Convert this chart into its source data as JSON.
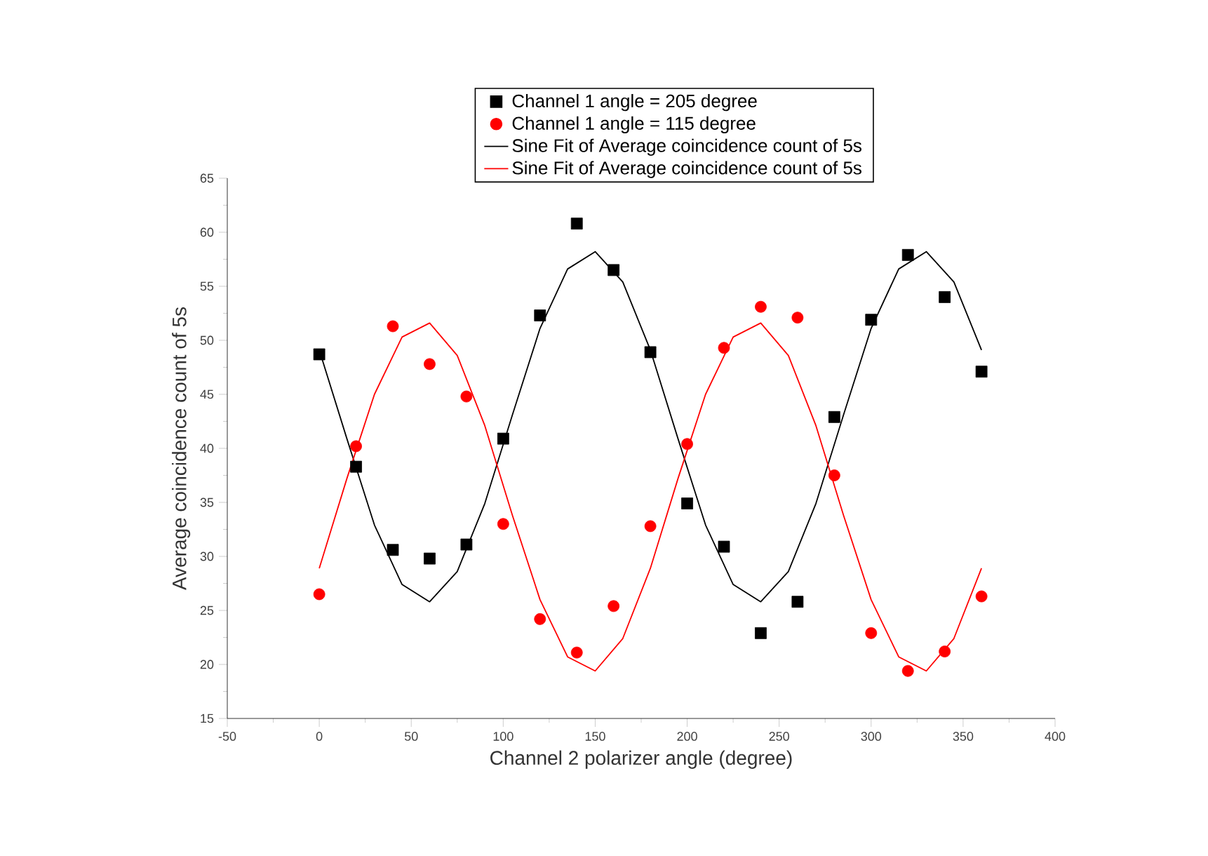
{
  "chart_data": {
    "type": "scatter",
    "xlabel": "Channel 2 polarizer angle (degree)",
    "ylabel": "Average coincidence count of 5s",
    "xlim": [
      -50,
      400
    ],
    "xticks": [
      -50,
      0,
      50,
      100,
      150,
      200,
      250,
      300,
      350,
      400
    ],
    "ylim": [
      15,
      65
    ],
    "yticks": [
      15,
      20,
      25,
      30,
      35,
      40,
      45,
      50,
      55,
      60,
      65
    ],
    "grid": false,
    "legend": "top",
    "series": [
      {
        "name": "Channel 1 angle = 205 degree",
        "marker": "square",
        "color": "#000000",
        "x": [
          0,
          20,
          40,
          60,
          80,
          100,
          120,
          140,
          160,
          180,
          200,
          220,
          240,
          260,
          280,
          300,
          320,
          340,
          360
        ],
        "values": [
          48.7,
          38.3,
          30.6,
          29.8,
          31.1,
          40.9,
          52.3,
          60.8,
          56.5,
          48.9,
          34.9,
          30.9,
          22.9,
          25.8,
          42.9,
          51.9,
          57.9,
          54.0,
          47.1
        ]
      },
      {
        "name": "Channel 1 angle = 115 degree",
        "marker": "circle",
        "color": "#ff0000",
        "x": [
          0,
          20,
          40,
          60,
          80,
          100,
          120,
          140,
          160,
          180,
          200,
          220,
          240,
          260,
          280,
          300,
          320,
          340,
          360
        ],
        "values": [
          26.5,
          40.2,
          51.3,
          47.8,
          44.8,
          33.0,
          24.2,
          21.1,
          25.4,
          32.8,
          40.4,
          49.3,
          53.1,
          52.1,
          37.5,
          22.9,
          19.4,
          21.2,
          26.3
        ]
      },
      {
        "name": "Sine Fit of Average coincidence count of 5s",
        "type": "line",
        "marker": "none",
        "line_style": "solid",
        "color": "#000000",
        "x": [
          0,
          15,
          30,
          45,
          60,
          75,
          90,
          105,
          120,
          135,
          150,
          165,
          180,
          195,
          210,
          225,
          240,
          255,
          270,
          285,
          300,
          315,
          330,
          345,
          360
        ],
        "values": [
          49.1,
          40.9,
          32.9,
          27.4,
          25.8,
          28.6,
          34.9,
          43.1,
          51.1,
          56.6,
          58.2,
          55.4,
          49.1,
          40.9,
          32.9,
          27.4,
          25.8,
          28.6,
          34.9,
          43.1,
          51.1,
          56.6,
          58.2,
          55.4,
          49.1
        ]
      },
      {
        "name": "Sine Fit of Average coincidence count of 5s",
        "type": "line",
        "marker": "none",
        "line_style": "solid",
        "color": "#ff0000",
        "x": [
          0,
          15,
          30,
          45,
          60,
          75,
          90,
          105,
          120,
          135,
          150,
          165,
          180,
          195,
          210,
          225,
          240,
          255,
          270,
          285,
          300,
          315,
          330,
          345,
          360
        ],
        "values": [
          28.9,
          37.2,
          45.0,
          50.3,
          51.6,
          48.6,
          42.1,
          33.8,
          26.0,
          20.7,
          19.4,
          22.4,
          28.9,
          37.2,
          45.0,
          50.3,
          51.6,
          48.6,
          42.1,
          33.8,
          26.0,
          20.7,
          19.4,
          22.4,
          28.9
        ]
      }
    ]
  }
}
